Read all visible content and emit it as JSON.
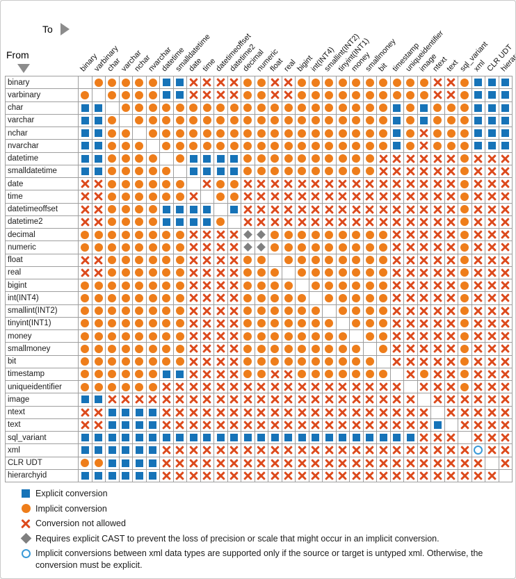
{
  "header": {
    "from_label": "From",
    "to_label": "To"
  },
  "colors": {
    "explicit_blue": "#1673B8",
    "implicit_orange": "#EE7D1A",
    "not_allowed_red": "#DC4A1C",
    "cast_diamond_gray": "#7F7F7F",
    "xml_open_circle_blue": "#3A9AD8",
    "grid_line": "#9E9E9E"
  },
  "legend": {
    "items": [
      {
        "symbol": "explicit-square",
        "text": "Explicit conversion"
      },
      {
        "symbol": "implicit-circle",
        "text": "Implicit conversion"
      },
      {
        "symbol": "not-allowed-x",
        "text": "Conversion not allowed"
      },
      {
        "symbol": "cast-diamond",
        "text": "Requires explicit CAST to prevent the loss of precision or scale that might occur in an implicit conversion."
      },
      {
        "symbol": "xml-open-circle",
        "text": "Implicit conversions between xml data types are supported only if the source or target is untyped xml. Otherwise, the conversion must be explicit."
      }
    ]
  },
  "chart_data": {
    "type": "heatmap",
    "x_label": "To",
    "y_label": "From",
    "x_categories": [
      "binary",
      "varbinary",
      "char",
      "varchar",
      "nchar",
      "nvarchar",
      "datetime",
      "smalldatetime",
      "date",
      "time",
      "datetimeoffset",
      "datetime2",
      "decimal",
      "numeric",
      "float",
      "real",
      "bigint",
      "int(INT4)",
      "smallint(INT2)",
      "tinyint(INT1)",
      "money",
      "smallmoney",
      "bit",
      "timestamp",
      "uniqueidentifier",
      "image",
      "ntext",
      "text",
      "sql_variant",
      "xml",
      "CLR UDT",
      "hierarchyid"
    ],
    "y_categories": [
      "binary",
      "varbinary",
      "char",
      "varchar",
      "nchar",
      "nvarchar",
      "datetime",
      "smalldatetime",
      "date",
      "time",
      "datetimeoffset",
      "datetime2",
      "decimal",
      "numeric",
      "float",
      "real",
      "bigint",
      "int(INT4)",
      "smallint(INT2)",
      "tinyint(INT1)",
      "money",
      "smallmoney",
      "bit",
      "timestamp",
      "uniqueidentifier",
      "image",
      "ntext",
      "text",
      "sql_variant",
      "xml",
      "CLR UDT",
      "hierarchyid"
    ],
    "cell_symbols": {
      "E": "explicit conversion",
      "I": "implicit conversion",
      "X": "conversion not allowed",
      "D": "requires explicit CAST to prevent loss of precision or scale",
      "O": "implicit only if source or target is untyped xml",
      ".": "blank (same type)"
    },
    "matrix": [
      ".IIIIIEEXXXXIIXXIIIIIIIIIIXXIEEE",
      "I.IIIIEEXXXXIIXXIIIIIIIIIIXXIEEE",
      "EE.IIIIIIIIIIIIIIIIIIIIEIEIIIEEE",
      "EEI.IIIIIIIIIIIIIIIIIIIEIEIIIEEE",
      "EEII.IIIIIIIIIIIIIIIIIIEIXIIIEEE",
      "EEIII.IIIIIIIIIIIIIIIIIEIXIIIEEE",
      "EEIIII.IEEEEIIIIIIIIIIXXXXXXIXXX",
      "EEIIIII.EEEEIIIIIIIIIIXXXXXXIXXX",
      "XXIIIIII.XIIXXXXXXXXXXXXXXXXIXXX",
      "XXIIIIIIX.IIXXXXXXXXXXXXXXXXIXXX",
      "XXIIIIEEEE.EXXXXXXXXXXXXXXXXIXXX",
      "XXIIIIEEEEI.XXXXXXXXXXXXXXXXIXXX",
      "IIIIIIIIXXXXDDIIIIIIIIIXXXXXIXXX",
      "IIIIIIIIXXXXDDIIIIIIIIIXXXXXIXXX",
      "XXIIIIIIXXXXII.IIIIIIIIXXXXXIXXX",
      "XXIIIIIIXXXXIII.IIIIIIIXXXXXIXXX",
      "IIIIIIIIXXXXIIII.IIIIIIXXXXXIXXX",
      "IIIIIIIIXXXXIIIII.IIIIIXXXXXIXXX",
      "IIIIIIIIXXXXIIIIII.IIIIXXXXXIXXX",
      "IIIIIIIIXXXXIIIIIII.IIIXXXXXIXXX",
      "IIIIIIIIXXXXIIIIIIII.IIXXXXXIXXX",
      "IIIIIIIIXXXXIIIIIIIII.IXXXXXIXXX",
      "IIIIIIIIXXXXIIIIIIIIII.XXXXXIXXX",
      "IIIIIIEEXXXXIIXXIIIIIII.XIXXIXXX",
      "IIIIIIXXXXXXXXXXXXXXXXXX.XXXIXXX",
      "EEXXXXXXXXXXXXXXXXXXXXXXX.XXXXXX",
      "XXEEEEXXXXXXXXXXXXXXXXXXXX.XXXXX",
      "XXEEEEXXXXXXXXXXXXXXXXXXXXE.XXXX",
      "EEEEEEEEEEEEEEEEEEEEEEEEEXXX.XXX",
      "EEEEEEXXXXXXXXXXXXXXXXXXXXXXXOXX",
      "IIEEEEXXXXXXXXXXXXXXXXXXXXXXXX.X",
      "EEEEEEXXXXXXXXXXXXXXXXXXXXXXXXX."
    ]
  }
}
